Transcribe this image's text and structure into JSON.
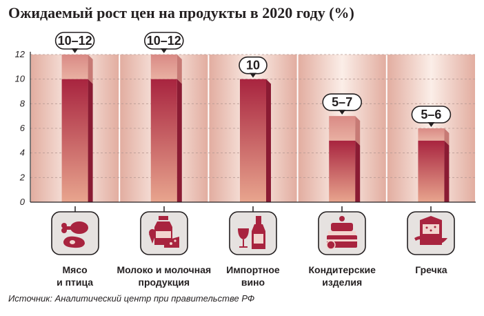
{
  "title": "Ожидаемый рост цен на продукты в 2020 году (%)",
  "source": "Источник: Аналитический центр при правительстве РФ",
  "colors": {
    "bar_dark": "#a8243f",
    "bar_light": "#e8a58e",
    "band_dark": "#e2ada0",
    "band_light": "#fbeee8",
    "icon_fill": "#a8243f",
    "icon_bg": "#e6e2e0"
  },
  "chart_data": {
    "type": "bar",
    "title": "Ожидаемый рост цен на продукты в 2020 году (%)",
    "ylim": [
      0,
      12
    ],
    "yticks": [
      "0",
      "2",
      "4",
      "6",
      "8",
      "10",
      "12"
    ],
    "grid": true,
    "categories": [
      [
        "Мясо",
        "и птица"
      ],
      [
        "Молоко и молочная",
        "продукция"
      ],
      [
        "Импортное",
        "вино"
      ],
      [
        "Кондитерские",
        "изделия"
      ],
      [
        "Гречка"
      ]
    ],
    "values_low": [
      10,
      10,
      10,
      5,
      5
    ],
    "values_high": [
      12,
      12,
      10,
      7,
      6
    ],
    "labels": [
      "10–12",
      "10–12",
      "10",
      "5–7",
      "5–6"
    ],
    "icons": [
      "meat-icon",
      "milk-icon",
      "wine-icon",
      "cake-icon",
      "buckwheat-icon"
    ]
  }
}
